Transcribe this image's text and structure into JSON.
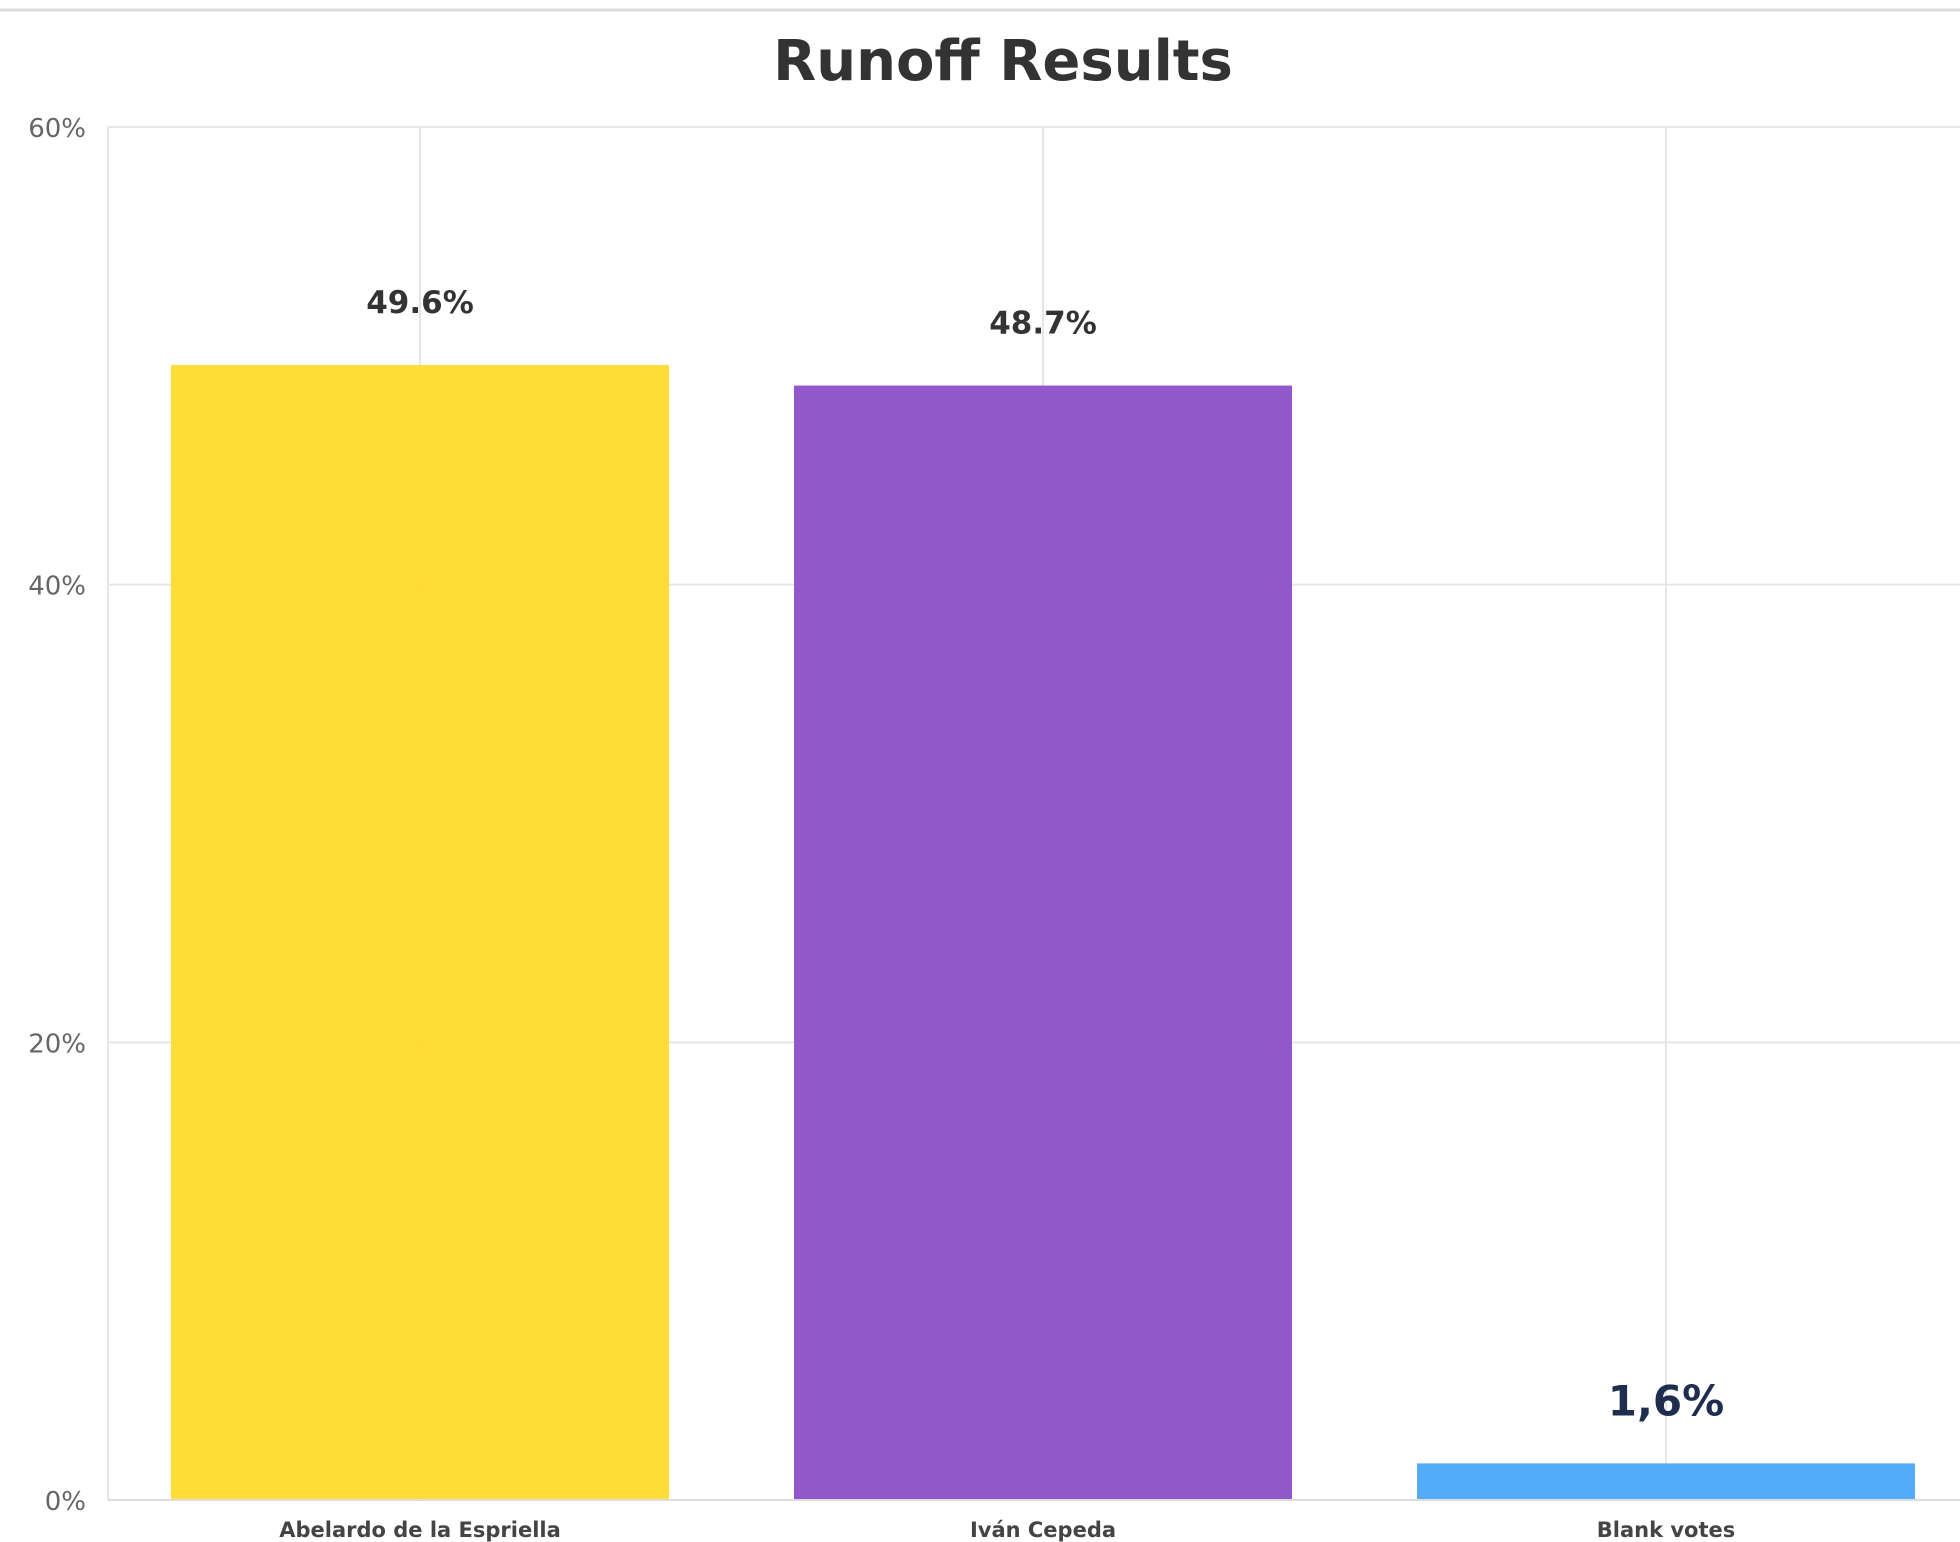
{
  "chart_data": {
    "type": "bar",
    "title": "Runoff Results",
    "xlabel": "",
    "ylabel": "",
    "ylim": [
      0,
      60
    ],
    "yticks": [
      0,
      20,
      40,
      60
    ],
    "ytick_labels": [
      "0%",
      "20%",
      "40%",
      "60%"
    ],
    "grid": true,
    "categories": [
      "Abelardo de la Espriella",
      "Iván Cepeda",
      "Blank votes"
    ],
    "values": [
      49.6,
      48.7,
      1.6
    ],
    "data_labels": [
      "49.6%",
      "48.7%",
      "1,6%"
    ],
    "colors": [
      "#FFDB2E",
      "#8E51C8",
      "#4DA8FA"
    ]
  }
}
